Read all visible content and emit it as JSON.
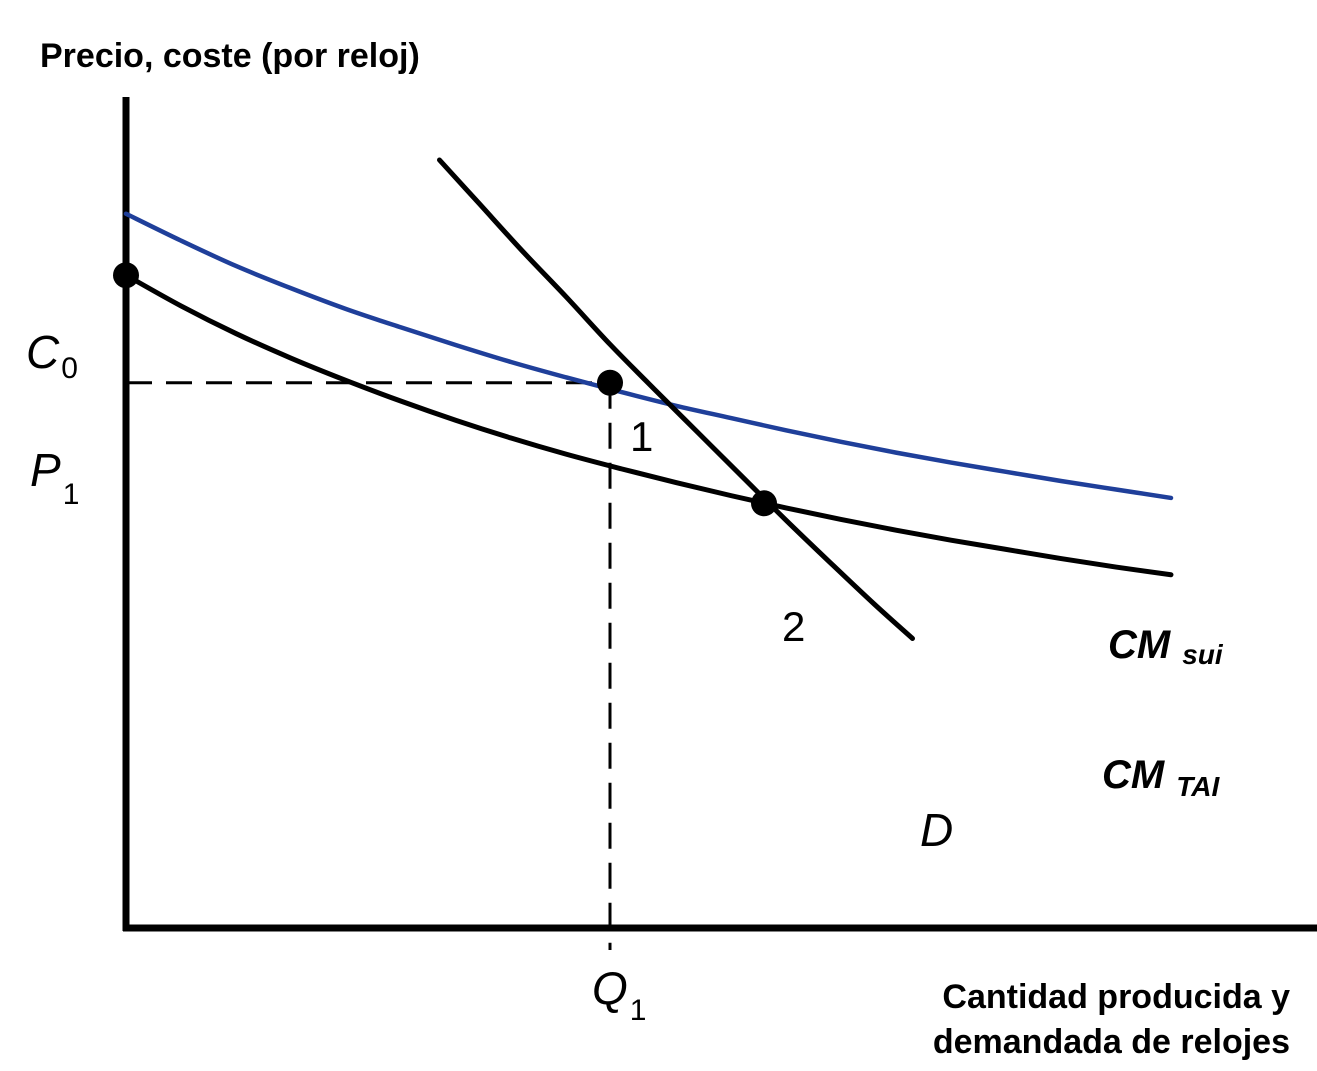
{
  "chart_data": {
    "type": "line",
    "ylabel": "Precio, coste (por reloj)",
    "xlabel_lines": [
      "Cantidad producida y",
      "demandada de relojes"
    ],
    "xlim": [
      0,
      10
    ],
    "ylim": [
      0,
      10
    ],
    "colors": {
      "axis": "#000000",
      "cm_sui": "#1f3f9a",
      "cm_tai": "#000000",
      "demand": "#000000",
      "guide": "#000000"
    },
    "series": [
      {
        "id": "cm_sui",
        "label_main": "CM",
        "label_sub": "sui",
        "x": [
          0.0,
          0.5,
          1.0,
          1.5,
          2.0,
          2.5,
          3.0,
          3.5,
          4.0,
          4.5,
          5.0,
          5.5,
          6.0,
          6.5,
          7.0,
          7.5,
          8.0,
          8.5,
          9.0,
          9.5
        ],
        "y": [
          9.3,
          8.95,
          8.62,
          8.33,
          8.06,
          7.82,
          7.59,
          7.37,
          7.17,
          6.98,
          6.8,
          6.64,
          6.48,
          6.33,
          6.19,
          6.06,
          5.94,
          5.82,
          5.71,
          5.6
        ]
      },
      {
        "id": "cm_tai",
        "label_main": "CM",
        "label_sub": "TAI",
        "x": [
          0.0,
          0.5,
          1.0,
          1.5,
          2.0,
          2.5,
          3.0,
          3.5,
          4.0,
          4.5,
          5.0,
          5.5,
          6.0,
          6.5,
          7.0,
          7.5,
          8.0,
          8.5,
          9.0,
          9.5
        ],
        "y": [
          8.5,
          8.1,
          7.74,
          7.42,
          7.13,
          6.86,
          6.61,
          6.38,
          6.17,
          5.98,
          5.8,
          5.63,
          5.47,
          5.32,
          5.18,
          5.05,
          4.93,
          4.81,
          4.7,
          4.6
        ]
      },
      {
        "id": "demand",
        "label_main": "D",
        "x": [
          2.85,
          3.2,
          3.6,
          4.0,
          4.4,
          4.8,
          5.2,
          5.6,
          6.0,
          6.4,
          6.8,
          7.15
        ],
        "y": [
          10.0,
          9.45,
          8.82,
          8.22,
          7.6,
          7.02,
          6.45,
          5.88,
          5.31,
          4.76,
          4.22,
          3.77
        ]
      }
    ],
    "points": [
      {
        "id": "c0",
        "x": 0.0,
        "y": 8.5,
        "label": ""
      },
      {
        "id": "p1",
        "x": 4.4,
        "y": 7.1,
        "label": "1"
      },
      {
        "id": "p2",
        "x": 5.8,
        "y": 5.53,
        "label": "2"
      }
    ],
    "y_ticks": [
      {
        "id": "c0",
        "main": "C",
        "sub": "0",
        "value": 8.5
      },
      {
        "id": "p1",
        "main": "P",
        "sub": "1",
        "value": 7.1
      }
    ],
    "x_ticks": [
      {
        "id": "q1",
        "main": "Q",
        "sub": "1",
        "value": 4.4
      }
    ],
    "guides": {
      "x": 4.4,
      "y": 7.1
    }
  }
}
